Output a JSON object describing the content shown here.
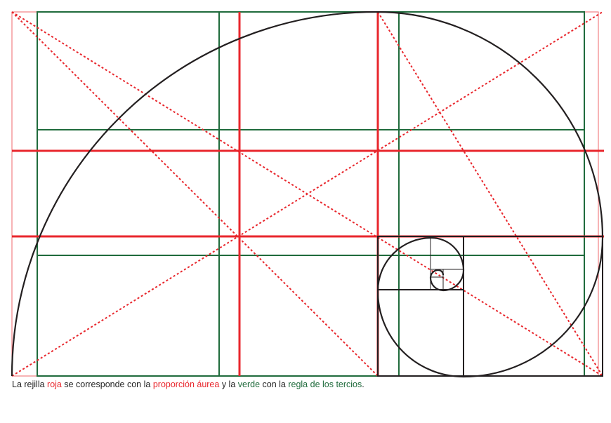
{
  "caption": {
    "prefix": "La rejilla ",
    "red_word": "roja",
    "middle1": " se corresponde con la ",
    "golden_ratio": "proporción áurea",
    "middle2": " y la ",
    "green_word": "verde",
    "middle3": " con la ",
    "rule_of_thirds": "regla de los tercios",
    "suffix": "."
  },
  "colors": {
    "red": "#e8262c",
    "green": "#1f6b3c",
    "spiral": "#231f20",
    "text": "#222222"
  }
}
